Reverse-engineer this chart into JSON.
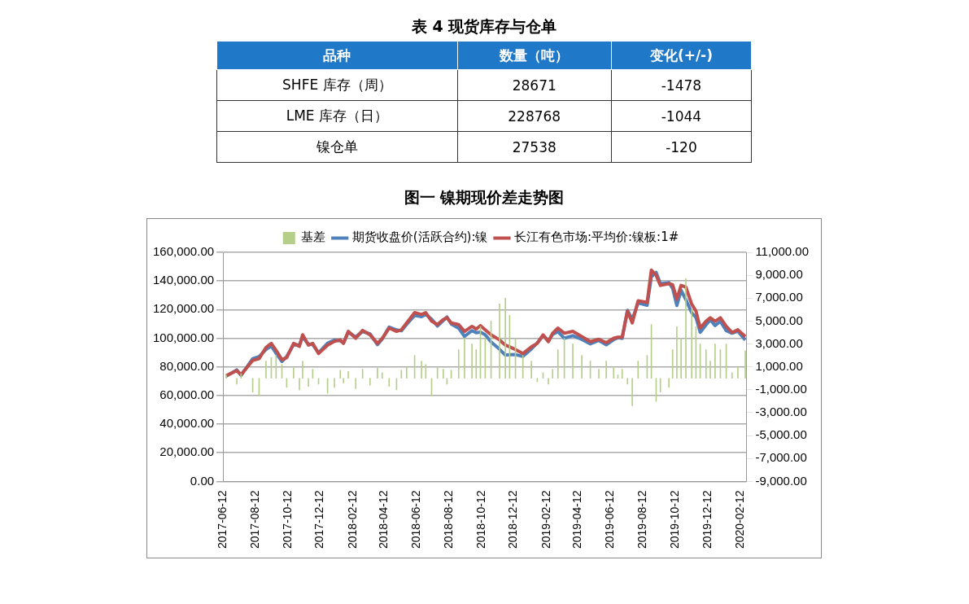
{
  "chart_data": [
    {
      "type": "other",
      "title": "表 4 现货库存与仓单",
      "ylabel": "品种",
      "categories": [
        "数量（吨）",
        "变化(+/-)"
      ],
      "y_categories": [
        "SHFE 库存（周）",
        "LME 库存（日）",
        "镍仓单"
      ],
      "cell_labels": [
        [
          "28671",
          "-1478"
        ],
        [
          "228768",
          "-1044"
        ],
        [
          "27538",
          "-120"
        ]
      ]
    },
    {
      "type": "line",
      "title": "图一 镍期现价差走势图",
      "legend": "top",
      "grid": "y",
      "x": [
        "2017-06-18",
        "2017-07-08",
        "2017-07-16",
        "2017-08-07",
        "2017-08-19",
        "2017-09-01",
        "2017-09-11",
        "2017-09-20",
        "2017-10-01",
        "2017-10-10",
        "2017-10-23",
        "2017-11-03",
        "2017-11-09",
        "2017-11-20",
        "2017-11-28",
        "2017-12-09",
        "2017-12-26",
        "2018-01-08",
        "2018-01-19",
        "2018-01-25",
        "2018-02-03",
        "2018-02-17",
        "2018-03-02",
        "2018-03-16",
        "2018-03-30",
        "2018-04-08",
        "2018-04-21",
        "2018-05-05",
        "2018-05-14",
        "2018-05-24",
        "2018-06-08",
        "2018-06-21",
        "2018-06-29",
        "2018-07-10",
        "2018-07-21",
        "2018-08-01",
        "2018-08-08",
        "2018-08-16",
        "2018-08-30",
        "2018-09-10",
        "2018-09-24",
        "2018-10-02",
        "2018-10-10",
        "2018-10-19",
        "2018-10-30",
        "2018-11-15",
        "2018-11-26",
        "2018-12-04",
        "2018-12-15",
        "2018-12-29",
        "2019-01-14",
        "2019-01-25",
        "2019-02-05",
        "2019-02-15",
        "2019-02-23",
        "2019-03-05",
        "2019-03-17",
        "2019-04-02",
        "2019-04-19",
        "2019-05-05",
        "2019-05-21",
        "2019-06-04",
        "2019-06-18",
        "2019-06-26",
        "2019-07-04",
        "2019-07-14",
        "2019-07-23",
        "2019-08-03",
        "2019-08-20",
        "2019-08-28",
        "2019-09-06",
        "2019-09-14",
        "2019-09-30",
        "2019-10-07",
        "2019-10-15",
        "2019-10-23",
        "2019-11-01",
        "2019-11-12",
        "2019-11-20",
        "2019-11-28",
        "2019-12-09",
        "2019-12-17",
        "2019-12-26",
        "2020-01-05",
        "2020-01-16",
        "2020-01-27",
        "2020-02-07",
        "2020-02-21"
      ],
      "xlim": [
        "2017-06-12",
        "2020-02-23"
      ],
      "xticks": [
        "2017-06-12",
        "2017-08-12",
        "2017-10-12",
        "2017-12-12",
        "2018-02-12",
        "2018-04-12",
        "2018-06-12",
        "2018-08-12",
        "2018-10-12",
        "2018-12-12",
        "2019-02-12",
        "2019-04-12",
        "2019-06-12",
        "2019-08-12",
        "2019-10-12",
        "2019-12-12",
        "2020-02-12"
      ],
      "ylim": [
        0,
        160000
      ],
      "yticks": [
        {
          "value": 0,
          "label": "0.00"
        },
        {
          "value": 20000,
          "label": "20,000.00"
        },
        {
          "value": 40000,
          "label": "40,000.00"
        },
        {
          "value": 60000,
          "label": "60,000.00"
        },
        {
          "value": 80000,
          "label": "80,000.00"
        },
        {
          "value": 100000,
          "label": "100,000.00"
        },
        {
          "value": 120000,
          "label": "120,000.00"
        },
        {
          "value": 140000,
          "label": "140,000.00"
        },
        {
          "value": 160000,
          "label": "160,000.00"
        }
      ],
      "y2lim": [
        -9000,
        11000
      ],
      "y2ticks": [
        {
          "value": -9000,
          "label": "-9,000.00"
        },
        {
          "value": -7000,
          "label": "-7,000.00"
        },
        {
          "value": -5000,
          "label": "-5,000.00"
        },
        {
          "value": -3000,
          "label": "-3,000.00"
        },
        {
          "value": -1000,
          "label": "-1,000.00"
        },
        {
          "value": 1000,
          "label": "1,000.00"
        },
        {
          "value": 3000,
          "label": "3,000.00"
        },
        {
          "value": 5000,
          "label": "5,000.00"
        },
        {
          "value": 7000,
          "label": "7,000.00"
        },
        {
          "value": 9000,
          "label": "9,000.00"
        },
        {
          "value": 11000,
          "label": "11,000.00"
        }
      ],
      "series": [
        {
          "name": "基差",
          "type": "bar",
          "axis": "y2",
          "color": "#b5cf8a",
          "values": [
            300,
            -500,
            400,
            -1200,
            -1500,
            1500,
            1800,
            2000,
            1200,
            -800,
            900,
            -1000,
            1500,
            -700,
            800,
            -500,
            -1300,
            -800,
            700,
            -400,
            600,
            -900,
            800,
            -600,
            900,
            500,
            -700,
            -1000,
            700,
            1000,
            2000,
            1500,
            1200,
            -1500,
            1000,
            800,
            -500,
            700,
            2500,
            3500,
            3000,
            2500,
            4500,
            3500,
            5000,
            6500,
            7000,
            5500,
            3500,
            2000,
            1500,
            -300,
            500,
            -500,
            800,
            2500,
            3500,
            3000,
            2000,
            1500,
            800,
            1500,
            1000,
            300,
            800,
            -500,
            -2400,
            1500,
            2000,
            4700,
            -2000,
            -1200,
            -800,
            2500,
            4500,
            3500,
            8700,
            6000,
            4500,
            3000,
            2500,
            1500,
            3000,
            2500,
            3000,
            500,
            1000,
            2400
          ]
        },
        {
          "name": "期货收盘价(活跃合约):镍",
          "type": "line",
          "color": "#4f81bd",
          "values": [
            73500,
            77900,
            74100,
            85700,
            87200,
            92100,
            94600,
            89600,
            83800,
            87200,
            95500,
            95300,
            100900,
            95900,
            95600,
            89800,
            96500,
            98700,
            98100,
            96800,
            104200,
            100900,
            104700,
            103000,
            95500,
            99500,
            107800,
            105800,
            105200,
            109700,
            115900,
            115100,
            116700,
            113400,
            108500,
            112300,
            114800,
            110000,
            107000,
            101300,
            105300,
            103900,
            104300,
            102400,
            97400,
            92300,
            88200,
            88500,
            88600,
            87300,
            92500,
            96700,
            101900,
            98100,
            102700,
            104600,
            100000,
            101800,
            99200,
            96100,
            98500,
            95400,
            99000,
            100400,
            99900,
            119500,
            113100,
            124700,
            123000,
            142900,
            146000,
            138100,
            138900,
            134900,
            122900,
            133400,
            127000,
            117800,
            114500,
            104100,
            109400,
            112800,
            108900,
            111800,
            105300,
            103500,
            104900,
            98800
          ]
        },
        {
          "name": "长江有色市场:平均价:镍板:1#",
          "type": "line",
          "color": "#c0504d",
          "values": [
            73800,
            77400,
            74500,
            84500,
            85700,
            93600,
            96400,
            91600,
            85000,
            86400,
            96400,
            94300,
            102400,
            95200,
            96400,
            89300,
            95200,
            97900,
            98800,
            96400,
            104800,
            100000,
            105500,
            102400,
            96400,
            100000,
            107100,
            104800,
            105900,
            110700,
            117900,
            116600,
            117900,
            111900,
            109500,
            113100,
            114300,
            110700,
            109500,
            104800,
            108300,
            106400,
            108800,
            105900,
            102400,
            98800,
            95200,
            94000,
            92100,
            89300,
            94000,
            96400,
            102400,
            97600,
            103500,
            107100,
            103500,
            104800,
            101200,
            97600,
            99300,
            96900,
            100000,
            100700,
            100700,
            119000,
            110700,
            126200,
            125000,
            147600,
            144000,
            136900,
            138100,
            137400,
            127400,
            136900,
            135700,
            123800,
            119000,
            107100,
            111900,
            114300,
            111900,
            114300,
            108300,
            104000,
            105900,
            101200
          ]
        }
      ]
    }
  ]
}
